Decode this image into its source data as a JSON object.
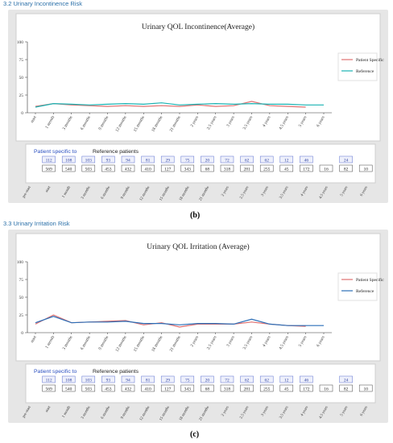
{
  "sections": [
    {
      "heading": "3.2 Urinary Incontinence Risk",
      "caption": "(b)",
      "chart_data": {
        "type": "line",
        "title": "Urinary QOL Incontinence(Average)",
        "xlabel": "",
        "ylabel": "",
        "ylim": [
          0,
          100
        ],
        "yticks": [
          0,
          25,
          50,
          75,
          100
        ],
        "categories": [
          "start",
          "1 month",
          "3 months",
          "6 months",
          "9 months",
          "12 months",
          "15 months",
          "18 months",
          "21 months",
          "2 years",
          "2.5 years",
          "3 years",
          "3.5 years",
          "4 years",
          "4.5 years",
          "5 years",
          "6 years"
        ],
        "series": [
          {
            "name": "Patient Specific",
            "color": "#e07070",
            "values": [
              9,
              13,
              11,
              10,
              9,
              10,
              9,
              10,
              9,
              11,
              9,
              10,
              16,
              10,
              9,
              8,
              null
            ]
          },
          {
            "name": "Reference",
            "color": "#1ab3b3",
            "values": [
              8,
              13,
              12,
              11,
              12,
              13,
              12,
              14,
              11,
              12,
              13,
              12,
              13,
              12,
              12,
              11,
              11
            ]
          }
        ],
        "legend_position": "right",
        "grid": false
      },
      "table": {
        "title_patient": "Patient specific to",
        "title_reference": "Reference patients",
        "columns": [
          "pre-start",
          "start",
          "1 month",
          "3 months",
          "6 months",
          "9 months",
          "12 months",
          "15 months",
          "18 months",
          "21 months",
          "2 years",
          "2.5 years",
          "3 years",
          "3.5 years",
          "4 years",
          "4.5 years",
          "5 years",
          "6 years"
        ],
        "patient": [
          "112",
          "108",
          "103",
          "93",
          "94",
          "81",
          "29",
          "75",
          "20",
          "72",
          "62",
          "62",
          "12",
          "46",
          "",
          "24",
          ""
        ],
        "reference": [
          "569",
          "540",
          "503",
          "453",
          "432",
          "410",
          "127",
          "343",
          "68",
          "318",
          "281",
          "255",
          "45",
          "172",
          "16",
          "82",
          "10"
        ]
      }
    },
    {
      "heading": "3.3 Urinary Irritation Risk",
      "caption": "(c)",
      "chart_data": {
        "type": "line",
        "title": "Urinary QOL Irritation (Average)",
        "xlabel": "",
        "ylabel": "",
        "ylim": [
          0,
          100
        ],
        "yticks": [
          0,
          25,
          50,
          75,
          100
        ],
        "categories": [
          "start",
          "1 month",
          "3 months",
          "6 months",
          "9 months",
          "12 months",
          "15 months",
          "18 months",
          "21 months",
          "2 years",
          "2.5 years",
          "3 years",
          "3.5 years",
          "4 years",
          "4.5 years",
          "5 years",
          "6 years"
        ],
        "series": [
          {
            "name": "Patient Specific",
            "color": "#e07070",
            "values": [
              12,
              25,
              14,
              15,
              16,
              17,
              11,
              14,
              8,
              12,
              12,
              12,
              15,
              12,
              10,
              9,
              null
            ]
          },
          {
            "name": "Reference",
            "color": "#2a6fb8",
            "values": [
              14,
              23,
              14,
              15,
              15,
              16,
              13,
              13,
              11,
              13,
              13,
              12,
              19,
              12,
              10,
              10,
              10
            ]
          }
        ],
        "legend_position": "right",
        "grid": false
      },
      "table": {
        "title_patient": "Patient specific to",
        "title_reference": "Reference patients",
        "columns": [
          "pre-start",
          "start",
          "1 month",
          "3 months",
          "6 months",
          "9 months",
          "12 months",
          "15 months",
          "18 months",
          "21 months",
          "2 years",
          "2.5 years",
          "3 years",
          "3.5 years",
          "4 years",
          "4.5 years",
          "5 years",
          "6 years"
        ],
        "patient": [
          "112",
          "108",
          "103",
          "93",
          "94",
          "81",
          "29",
          "75",
          "20",
          "72",
          "62",
          "62",
          "12",
          "46",
          "",
          "24",
          ""
        ],
        "reference": [
          "569",
          "540",
          "503",
          "453",
          "432",
          "410",
          "127",
          "343",
          "68",
          "318",
          "281",
          "255",
          "45",
          "172",
          "16",
          "82",
          "10"
        ]
      }
    }
  ]
}
